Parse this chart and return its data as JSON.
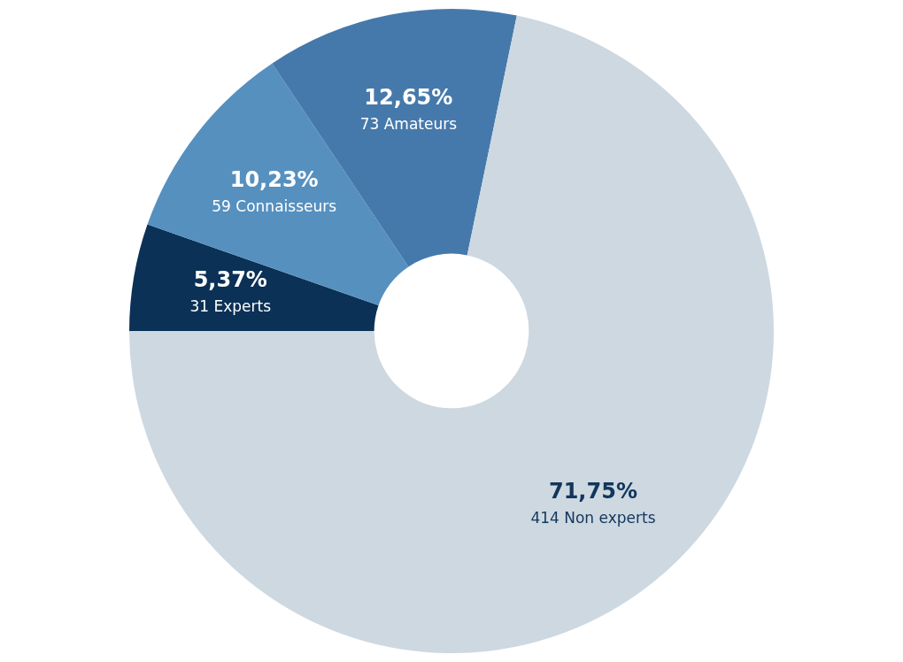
{
  "chart_data": {
    "type": "donut",
    "categories": [
      "31 Experts",
      "59 Connaisseurs",
      "73 Amateurs",
      "414 Non experts"
    ],
    "values": [
      5.37,
      10.23,
      12.65,
      71.75
    ],
    "colors": [
      "#0b3156",
      "#5690bf",
      "#4679ab",
      "#cdd8e1"
    ],
    "value_labels": [
      "5,37%",
      "10,23%",
      "12,65%",
      "71,75%"
    ],
    "legend": false
  }
}
